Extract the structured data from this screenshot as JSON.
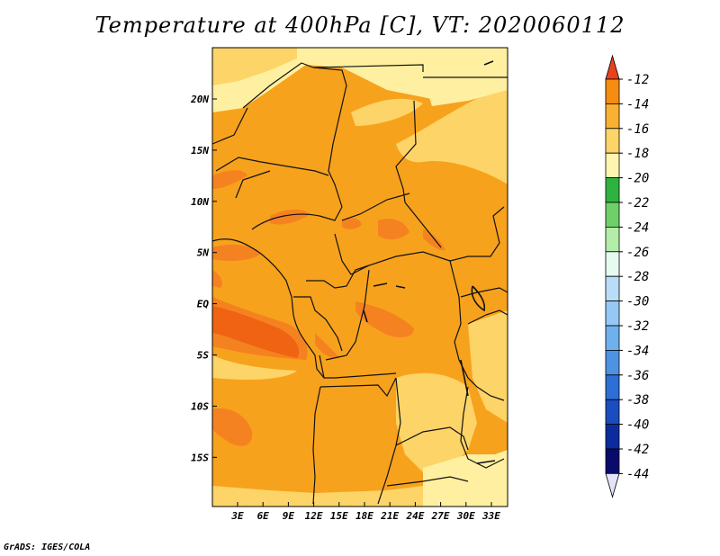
{
  "title": "Temperature at 400hPa [C], VT: 2020060112",
  "credit": "GrADS: IGES/COLA",
  "map": {
    "lon_ticks": [
      "3E",
      "6E",
      "9E",
      "12E",
      "15E",
      "18E",
      "21E",
      "24E",
      "27E",
      "30E",
      "33E"
    ],
    "lat_ticks": [
      "20N",
      "15N",
      "10N",
      "5N",
      "EQ",
      "5S",
      "10S",
      "15S"
    ],
    "field_colors": {
      "background": "#f7a21c",
      "cool_bands": "#fdd468",
      "coolest": "#fef0a0",
      "warm": "#f58220",
      "warmest": "#ef6312"
    }
  },
  "colorbar": {
    "labels": [
      "-12",
      "-14",
      "-16",
      "-18",
      "-20",
      "-22",
      "-24",
      "-26",
      "-28",
      "-30",
      "-32",
      "-34",
      "-36",
      "-38",
      "-40",
      "-42",
      "-44"
    ],
    "colors": [
      "#ef5a0f",
      "#f68c10",
      "#f9b133",
      "#fdd468",
      "#fff5b0",
      "#2fb340",
      "#6fd06a",
      "#b4ecaa",
      "#e6fbf0",
      "#b9ddf9",
      "#96c8f5",
      "#6fb0ee",
      "#4e92e4",
      "#2d6fd6",
      "#1a4dbf",
      "#0c2c9e",
      "#0a0a6b"
    ],
    "top_arrow_color": "#e8421e",
    "bottom_arrow_color": "#e4e4f8"
  }
}
